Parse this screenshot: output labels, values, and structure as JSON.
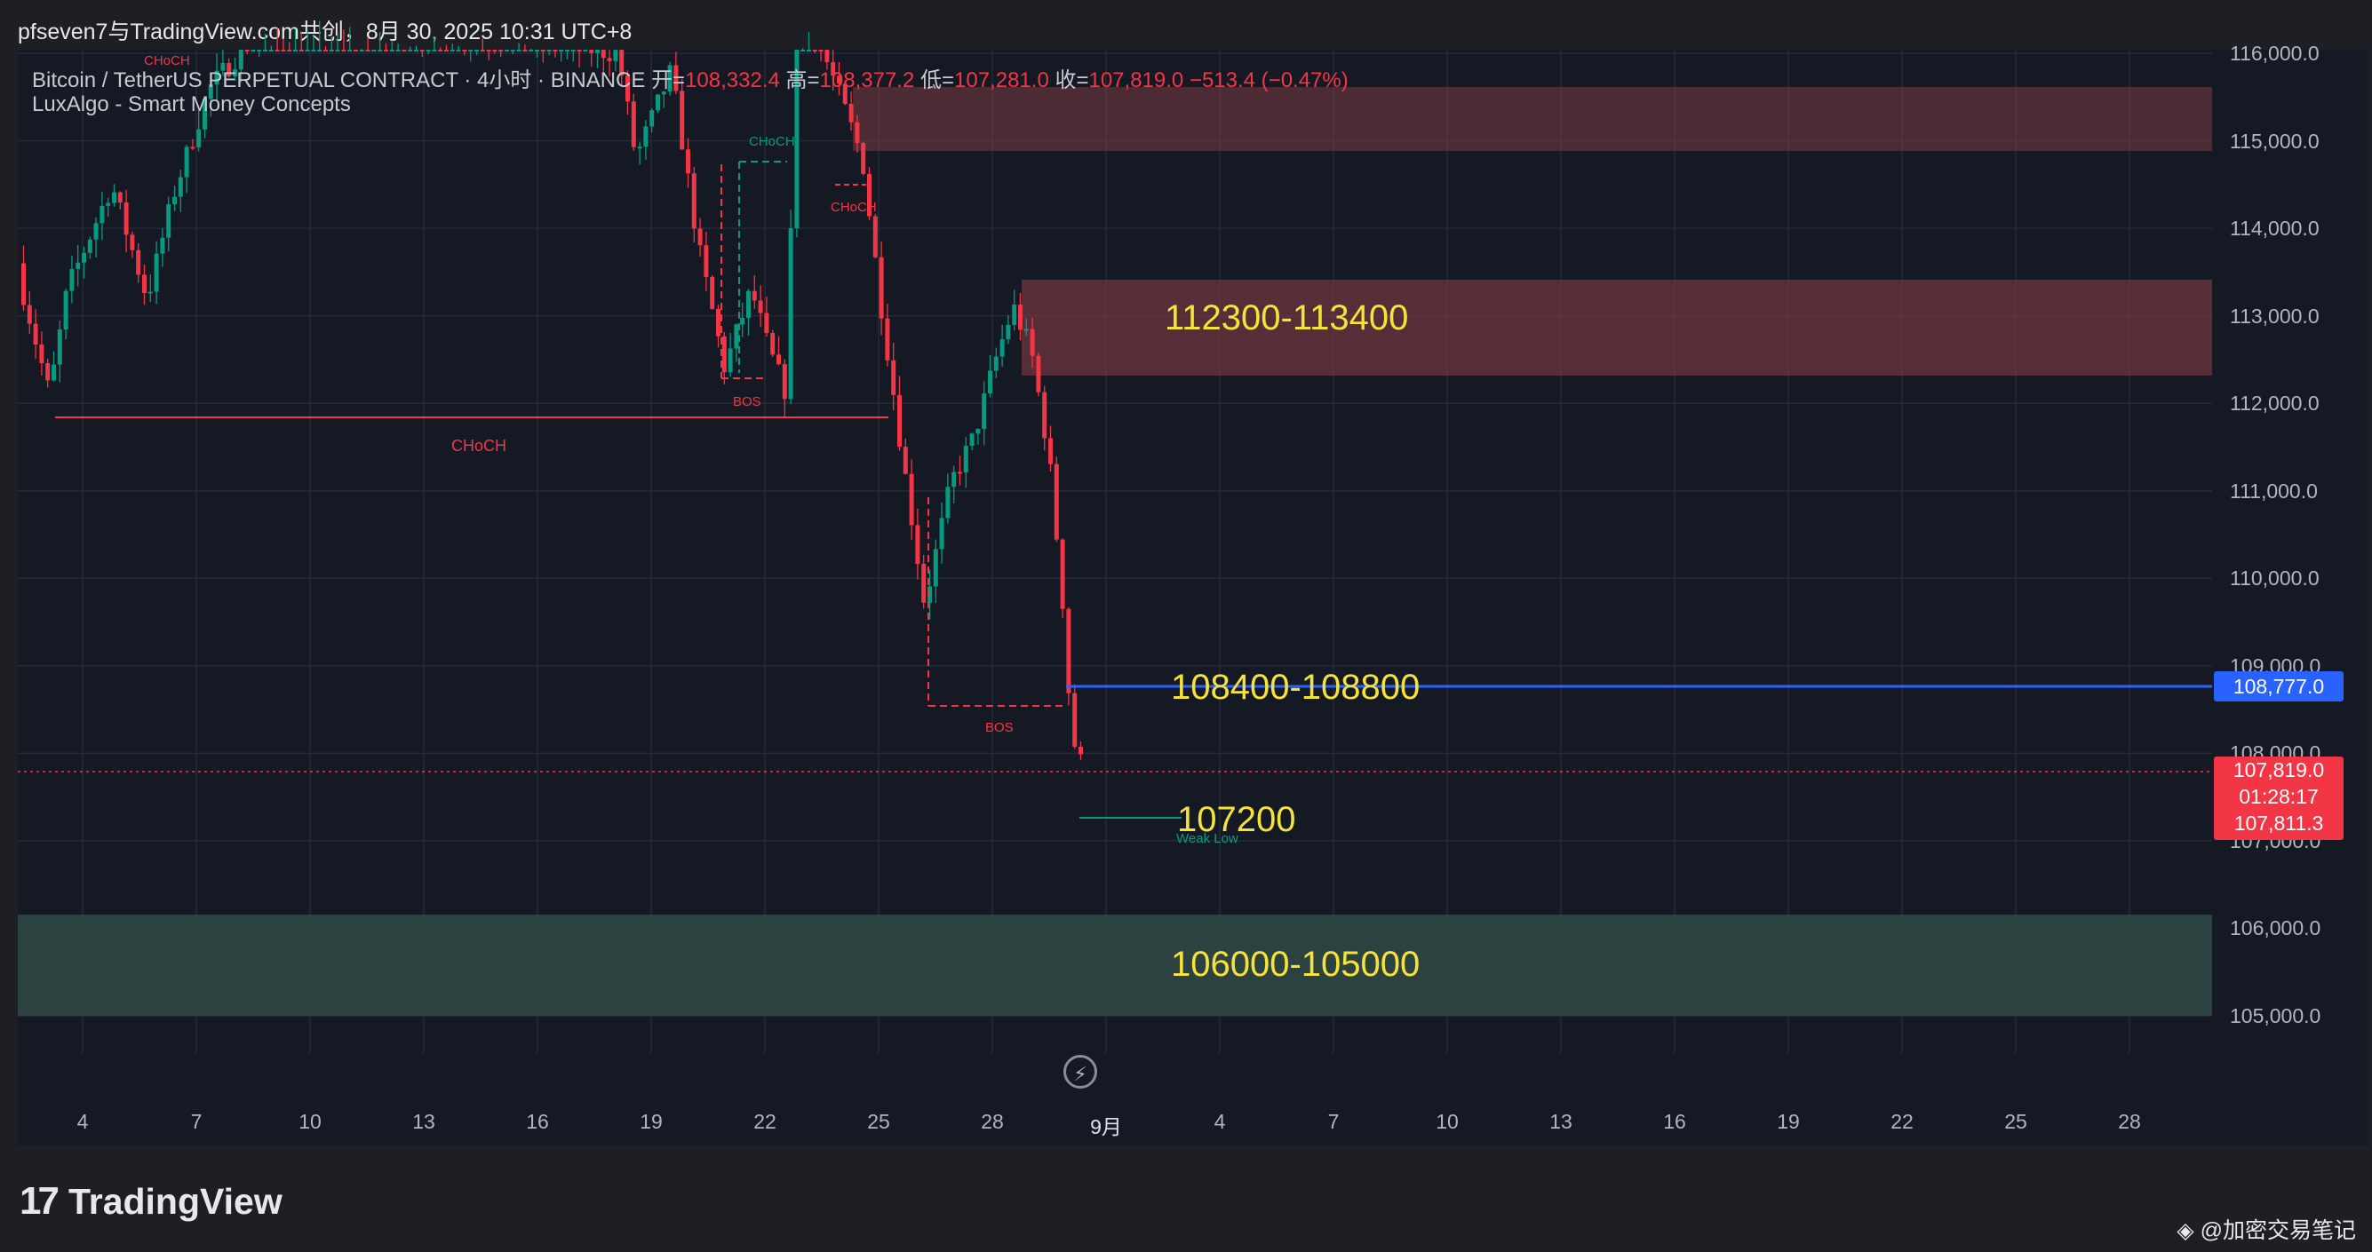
{
  "watermark": "pfseven7与TradingView.com共创，8月 30, 2025 10:31 UTC+8",
  "legend": {
    "symbol_line": "Bitcoin / TetherUS PERPETUAL CONTRACT · 4小时 · BINANCE",
    "open_key": "开=",
    "open_val": "108,332.4",
    "high_key": "高=",
    "high_val": "108,377.2",
    "low_key": "低=",
    "low_val": "107,281.0",
    "close_key": "收=",
    "close_val": "107,819.0",
    "change": "−513.4 (−0.47%)",
    "indicator": "LuxAlgo - Smart Money Concepts"
  },
  "price_axis": {
    "ticks": [
      "116,000.0",
      "115,000.0",
      "114,000.0",
      "113,000.0",
      "112,000.0",
      "111,000.0",
      "110,000.0",
      "109,000.0",
      "108,000.0",
      "107,000.0",
      "106,000.0",
      "105,000.0"
    ],
    "current_price_tag": "108,777.0",
    "last_price_tag": "107,819.0",
    "countdown": "01:28:17",
    "bid_tag": "107,811.3"
  },
  "time_axis": {
    "ticks": [
      "4",
      "7",
      "10",
      "13",
      "16",
      "19",
      "22",
      "25",
      "28",
      "9月",
      "4",
      "7",
      "10",
      "13",
      "16",
      "19",
      "22",
      "25",
      "28"
    ]
  },
  "zones": {
    "upper_supply": "112300-113400",
    "mid_level": "108400-108800",
    "weak_low_level": "107200",
    "demand": "106000-105000"
  },
  "smc_labels": {
    "choch_main": "CHoCH",
    "choch_top_left": "CHoCH",
    "choch_green": "CHoCH",
    "choch_red_small": "CHoCH",
    "bos_1": "BOS",
    "bos_2": "BOS",
    "weak_low": "Weak Low"
  },
  "brand": {
    "logo_text": "TradingView",
    "logo_mark": "17",
    "credit": "@加密交易笔记"
  },
  "colors": {
    "up": "#089981",
    "down": "#f23645",
    "zone_text": "#f5e33a",
    "blue_line": "#2962ff"
  },
  "icons": {
    "bolt": "lightning-icon",
    "credit": "diamond-logo-icon"
  }
}
